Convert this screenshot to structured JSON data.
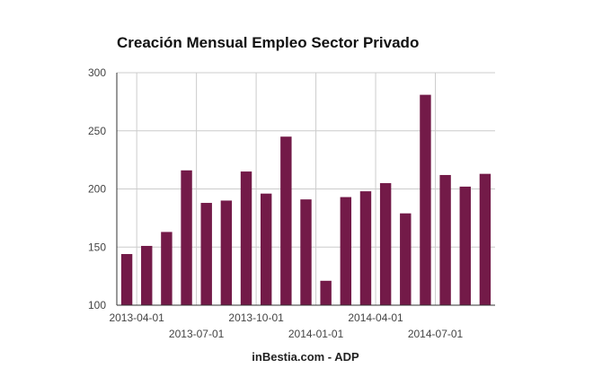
{
  "chart_data": {
    "type": "bar",
    "title": "Creación Mensual Empleo Sector Privado",
    "xlabel": "",
    "ylabel": "",
    "categories": [
      "2013-03",
      "2013-04",
      "2013-05",
      "2013-06",
      "2013-07",
      "2013-08",
      "2013-09",
      "2013-10",
      "2013-11",
      "2013-12",
      "2014-01",
      "2014-02",
      "2014-03",
      "2014-04",
      "2014-05",
      "2014-06",
      "2014-07",
      "2014-08",
      "2014-09"
    ],
    "values": [
      144,
      151,
      163,
      216,
      188,
      190,
      215,
      196,
      245,
      191,
      121,
      193,
      198,
      205,
      179,
      281,
      212,
      202,
      213
    ],
    "ylim": [
      100,
      300
    ],
    "yticks": [
      "100",
      "150",
      "200",
      "250",
      "300"
    ],
    "xticks": [
      {
        "label": "2013-04-01",
        "index": 1,
        "row": 1
      },
      {
        "label": "2013-07-01",
        "index": 4,
        "row": 2
      },
      {
        "label": "2013-10-01",
        "index": 7,
        "row": 1
      },
      {
        "label": "2014-01-01",
        "index": 10,
        "row": 2
      },
      {
        "label": "2014-04-01",
        "index": 13,
        "row": 1
      },
      {
        "label": "2014-07-01",
        "index": 16,
        "row": 2
      }
    ],
    "grid": true,
    "bar_color": "#731a48"
  },
  "footer": "inBestia.com - ADP"
}
